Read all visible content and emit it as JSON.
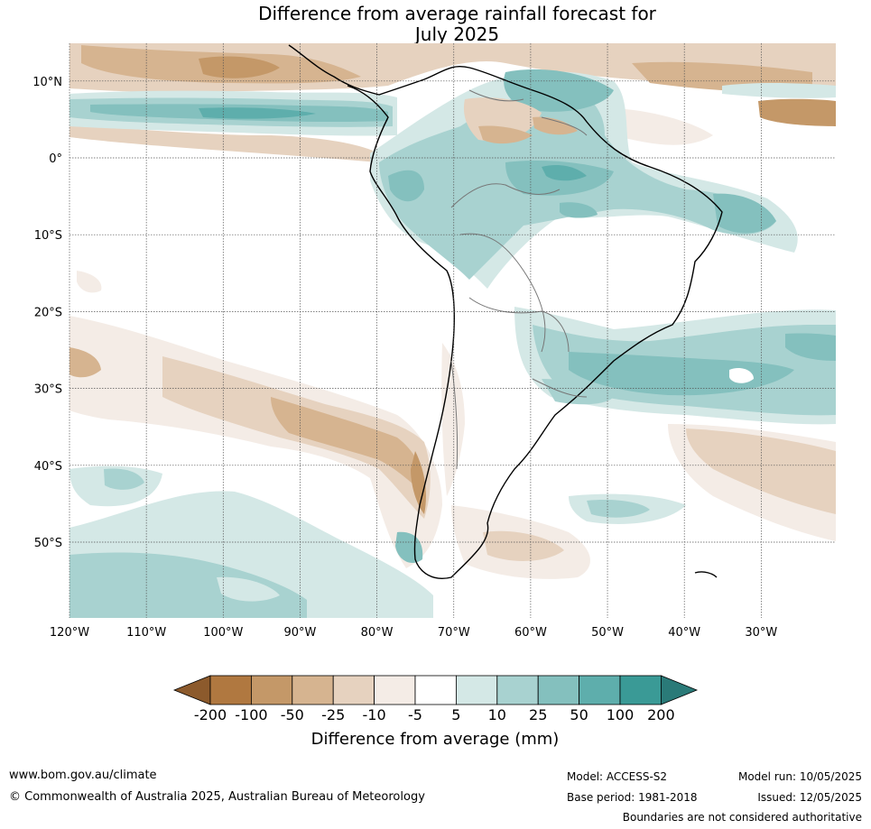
{
  "title": {
    "line1": "Difference from average rainfall forecast for",
    "line2": "July 2025"
  },
  "map": {
    "lat_labels": [
      "10°N",
      "0°",
      "10°S",
      "20°S",
      "30°S",
      "40°S",
      "50°S"
    ],
    "lon_labels": [
      "120°W",
      "110°W",
      "100°W",
      "90°W",
      "80°W",
      "70°W",
      "60°W",
      "50°W",
      "40°W",
      "30°W"
    ],
    "gridlines": true
  },
  "colorbar": {
    "ticks": [
      "-200",
      "-100",
      "-50",
      "-25",
      "-10",
      "-5",
      "5",
      "10",
      "25",
      "50",
      "100",
      "200"
    ],
    "colors": {
      "below_min": "#8c5a2c",
      "b1": "#b07840",
      "b2": "#c49868",
      "b3": "#d6b490",
      "b4": "#e6d2bf",
      "b5": "#f4ece6",
      "neutral": "#ffffff",
      "g1": "#d4e8e6",
      "g2": "#a8d2d0",
      "g3": "#84c0be",
      "g4": "#5eaeac",
      "g5": "#3a9a96",
      "above_max": "#2a7a78"
    },
    "title": "Difference from average (mm)"
  },
  "footer": {
    "website": "www.bom.gov.au/climate",
    "copyright": "© Commonwealth of Australia 2025, Australian Bureau of Meteorology",
    "model": "Model: ACCESS-S2",
    "base_period": "Base period: 1981-2018",
    "model_run": "Model run: 10/05/2025",
    "issued": "Issued: 12/05/2025",
    "disclaimer": "Boundaries are not considered authoritative"
  }
}
